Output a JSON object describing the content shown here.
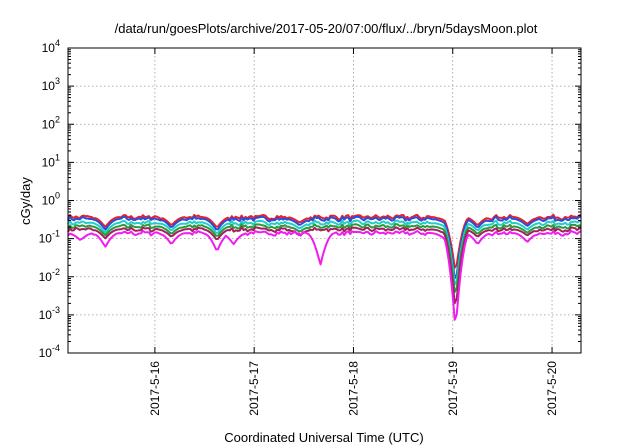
{
  "chart_data": {
    "type": "line",
    "title": "/data/run/goesPlots/archive/2017-05-20/07:00/flux/../bryn/5daysMoon.plot",
    "xlabel": "Coordinated Universal Time (UTC)",
    "ylabel": "cGy/day",
    "yscale": "log",
    "ylim": [
      0.0001,
      10000
    ],
    "xlim": [
      "2017-05-15T03:00",
      "2017-05-20T07:00"
    ],
    "grid": true,
    "x_ticks": [
      "2017-5-16",
      "2017-5-17",
      "2017-5-18",
      "2017-5-19",
      "2017-5-20"
    ],
    "y_ticks": [
      {
        "base": "10",
        "exp": "-4",
        "value": 0.0001
      },
      {
        "base": "10",
        "exp": "-3",
        "value": 0.001
      },
      {
        "base": "10",
        "exp": "-2",
        "value": 0.01
      },
      {
        "base": "10",
        "exp": "-1",
        "value": 0.1
      },
      {
        "base": "10",
        "exp": "0",
        "value": 1
      },
      {
        "base": "10",
        "exp": "1",
        "value": 10
      },
      {
        "base": "10",
        "exp": "2",
        "value": 100
      },
      {
        "base": "10",
        "exp": "3",
        "value": 1000
      },
      {
        "base": "10",
        "exp": "4",
        "value": 10000
      }
    ],
    "series": [
      {
        "color": "#e8202a",
        "base_level": 0.37,
        "dips": [
          {
            "x": "2017-05-15T12:00",
            "y": 0.2
          },
          {
            "x": "2017-05-16T04:00",
            "y": 0.22
          },
          {
            "x": "2017-05-16T15:00",
            "y": 0.19
          },
          {
            "x": "2017-05-17T11:00",
            "y": 0.26
          },
          {
            "x": "2017-05-18T22:00",
            "y": 0.3
          },
          {
            "x": "2017-05-19T00:40",
            "y": 0.012
          },
          {
            "x": "2017-05-19T06:00",
            "y": 0.22
          },
          {
            "x": "2017-05-19T18:00",
            "y": 0.24
          }
        ]
      },
      {
        "color": "#2a4dde",
        "base_level": 0.33,
        "dips": [
          {
            "x": "2017-05-15T12:00",
            "y": 0.17
          },
          {
            "x": "2017-05-16T04:00",
            "y": 0.19
          },
          {
            "x": "2017-05-16T15:00",
            "y": 0.16
          },
          {
            "x": "2017-05-17T11:00",
            "y": 0.22
          },
          {
            "x": "2017-05-18T22:00",
            "y": 0.26
          },
          {
            "x": "2017-05-19T00:40",
            "y": 0.006
          },
          {
            "x": "2017-05-19T06:00",
            "y": 0.19
          },
          {
            "x": "2017-05-19T18:00",
            "y": 0.21
          }
        ]
      },
      {
        "color": "#20d0c8",
        "base_level": 0.26,
        "dips": [
          {
            "x": "2017-05-15T12:00",
            "y": 0.14
          },
          {
            "x": "2017-05-16T04:00",
            "y": 0.16
          },
          {
            "x": "2017-05-16T15:00",
            "y": 0.13
          },
          {
            "x": "2017-05-17T11:00",
            "y": 0.18
          },
          {
            "x": "2017-05-18T22:00",
            "y": 0.21
          },
          {
            "x": "2017-05-19T00:40",
            "y": 0.004
          },
          {
            "x": "2017-05-19T06:00",
            "y": 0.16
          },
          {
            "x": "2017-05-19T18:00",
            "y": 0.17
          }
        ]
      },
      {
        "color": "#2a9a3a",
        "base_level": 0.21,
        "dips": [
          {
            "x": "2017-05-15T12:00",
            "y": 0.12
          },
          {
            "x": "2017-05-16T04:00",
            "y": 0.13
          },
          {
            "x": "2017-05-16T15:00",
            "y": 0.11
          },
          {
            "x": "2017-05-17T11:00",
            "y": 0.15
          },
          {
            "x": "2017-05-18T22:00",
            "y": 0.17
          },
          {
            "x": "2017-05-19T00:40",
            "y": 0.0025
          },
          {
            "x": "2017-05-19T06:00",
            "y": 0.13
          },
          {
            "x": "2017-05-19T18:00",
            "y": 0.14
          }
        ]
      },
      {
        "color": "#a0225a",
        "base_level": 0.175,
        "dips": [
          {
            "x": "2017-05-15T12:00",
            "y": 0.1
          },
          {
            "x": "2017-05-16T04:00",
            "y": 0.11
          },
          {
            "x": "2017-05-16T15:00",
            "y": 0.09
          },
          {
            "x": "2017-05-17T11:00",
            "y": 0.12
          },
          {
            "x": "2017-05-18T22:00",
            "y": 0.14
          },
          {
            "x": "2017-05-19T00:40",
            "y": 0.0012
          },
          {
            "x": "2017-05-19T06:00",
            "y": 0.11
          },
          {
            "x": "2017-05-19T18:00",
            "y": 0.12
          }
        ]
      },
      {
        "color": "#f01cf0",
        "base_level": 0.14,
        "dips": [
          {
            "x": "2017-05-15T06:00",
            "y": 0.09
          },
          {
            "x": "2017-05-15T12:00",
            "y": 0.06
          },
          {
            "x": "2017-05-16T04:00",
            "y": 0.07
          },
          {
            "x": "2017-05-16T15:00",
            "y": 0.045
          },
          {
            "x": "2017-05-16T19:00",
            "y": 0.07
          },
          {
            "x": "2017-05-17T16:00",
            "y": 0.02
          },
          {
            "x": "2017-05-18T22:00",
            "y": 0.1
          },
          {
            "x": "2017-05-19T00:40",
            "y": 0.0004
          },
          {
            "x": "2017-05-19T06:00",
            "y": 0.07
          },
          {
            "x": "2017-05-19T18:00",
            "y": 0.08
          }
        ]
      }
    ]
  }
}
